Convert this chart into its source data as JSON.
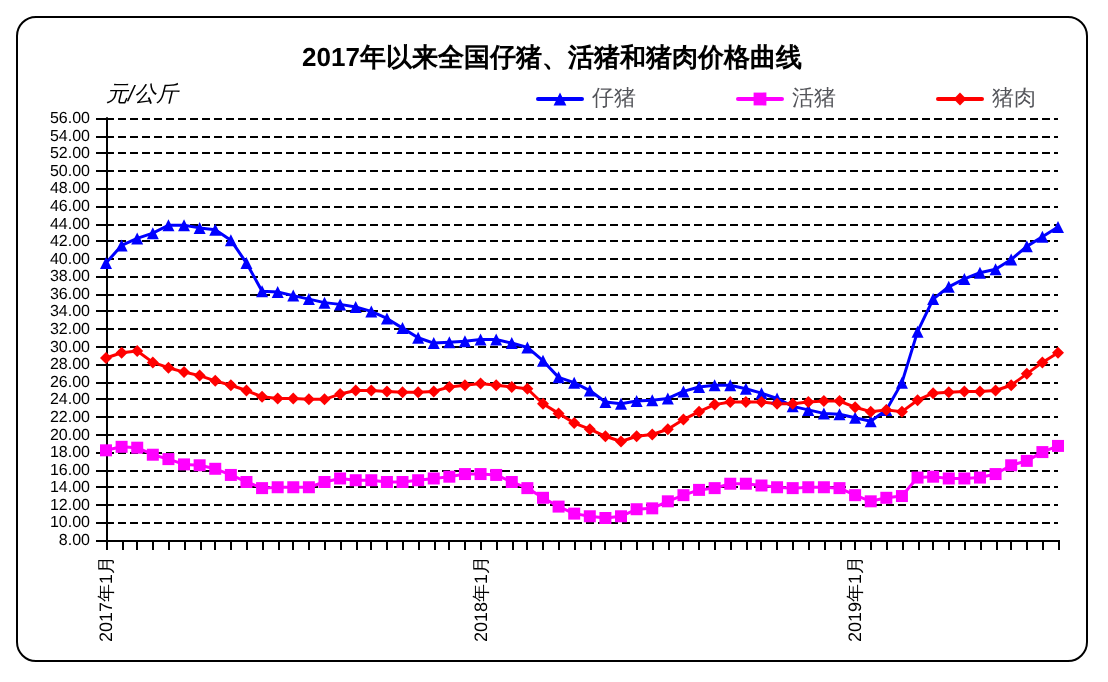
{
  "chart_data": {
    "type": "line",
    "title": "2017年以来全国仔猪、活猪和猪肉价格曲线",
    "ylabel": "元/公斤",
    "categories": [
      "2017年1月",
      null,
      null,
      null,
      null,
      null,
      null,
      null,
      null,
      null,
      null,
      null,
      null,
      null,
      null,
      null,
      null,
      null,
      null,
      null,
      null,
      null,
      null,
      null,
      "2018年1月",
      null,
      null,
      null,
      null,
      null,
      null,
      null,
      null,
      null,
      null,
      null,
      null,
      null,
      null,
      null,
      null,
      null,
      null,
      null,
      null,
      null,
      null,
      null,
      "2019年1月",
      null,
      null,
      null,
      null,
      null,
      null,
      null,
      null,
      null,
      null,
      null,
      null,
      null
    ],
    "series": [
      {
        "name": "仔猪",
        "color": "#0000ff",
        "marker": "triangle",
        "values": [
          39.5,
          41.5,
          42.3,
          42.9,
          43.8,
          43.8,
          43.5,
          43.3,
          42.1,
          39.5,
          36.3,
          36.2,
          35.8,
          35.4,
          35.0,
          34.8,
          34.5,
          34.0,
          33.2,
          32.1,
          31.0,
          30.4,
          30.5,
          30.6,
          30.8,
          30.8,
          30.4,
          29.9,
          28.4,
          26.5,
          25.9,
          25.0,
          23.7,
          23.5,
          23.8,
          23.9,
          24.1,
          24.9,
          25.4,
          25.6,
          25.6,
          25.2,
          24.7,
          24.1,
          23.2,
          22.8,
          22.4,
          22.3,
          21.9,
          21.5,
          22.8,
          25.9,
          31.7,
          35.4,
          36.8,
          37.7,
          38.4,
          38.8,
          39.9,
          41.4,
          42.5,
          43.6
        ]
      },
      {
        "name": "活猪",
        "color": "#ff00ff",
        "marker": "square",
        "values": [
          18.2,
          18.6,
          18.5,
          17.7,
          17.2,
          16.6,
          16.5,
          16.1,
          15.4,
          14.6,
          13.9,
          14.0,
          14.0,
          14.0,
          14.6,
          15.0,
          14.8,
          14.8,
          14.6,
          14.6,
          14.8,
          15.0,
          15.2,
          15.5,
          15.5,
          15.4,
          14.6,
          13.9,
          12.8,
          11.8,
          11.0,
          10.7,
          10.5,
          10.7,
          11.5,
          11.6,
          12.4,
          13.1,
          13.7,
          13.9,
          14.4,
          14.4,
          14.2,
          14.0,
          13.9,
          14.0,
          14.0,
          13.9,
          13.1,
          12.4,
          12.8,
          13.0,
          15.1,
          15.2,
          15.0,
          15.0,
          15.1,
          15.5,
          16.5,
          17.0,
          18.0,
          18.7
        ]
      },
      {
        "name": "猪肉",
        "color": "#ff0000",
        "marker": "diamond",
        "values": [
          28.7,
          29.3,
          29.5,
          28.2,
          27.6,
          27.1,
          26.7,
          26.1,
          25.6,
          25.0,
          24.3,
          24.1,
          24.1,
          24.0,
          24.0,
          24.6,
          25.0,
          25.0,
          24.9,
          24.8,
          24.8,
          24.9,
          25.4,
          25.6,
          25.8,
          25.6,
          25.4,
          25.2,
          23.5,
          22.4,
          21.3,
          20.6,
          19.8,
          19.2,
          19.8,
          20.0,
          20.6,
          21.7,
          22.6,
          23.4,
          23.7,
          23.7,
          23.7,
          23.5,
          23.5,
          23.7,
          23.8,
          23.8,
          23.1,
          22.6,
          22.8,
          22.6,
          23.9,
          24.7,
          24.8,
          24.9,
          24.9,
          25.0,
          25.6,
          26.9,
          28.2,
          29.3
        ]
      }
    ],
    "ylim": [
      8,
      56
    ],
    "yticks": [
      {
        "value": 8,
        "label": "8.00"
      },
      {
        "value": 10,
        "label": "10.00"
      },
      {
        "value": 12,
        "label": "12.00"
      },
      {
        "value": 14,
        "label": "14.00"
      },
      {
        "value": 16,
        "label": "16.00"
      },
      {
        "value": 18,
        "label": "18.00"
      },
      {
        "value": 20,
        "label": "20.00"
      },
      {
        "value": 22,
        "label": "22.00"
      },
      {
        "value": 24,
        "label": "24.00"
      },
      {
        "value": 26,
        "label": "26.00"
      },
      {
        "value": 28,
        "label": "28.00"
      },
      {
        "value": 30,
        "label": "30.00"
      },
      {
        "value": 32,
        "label": "32.00"
      },
      {
        "value": 34,
        "label": "34.00"
      },
      {
        "value": 36,
        "label": "36.00"
      },
      {
        "value": 38,
        "label": "38.00"
      },
      {
        "value": 40,
        "label": "40.00"
      },
      {
        "value": 42,
        "label": "42.00"
      },
      {
        "value": 44,
        "label": "44.00"
      },
      {
        "value": 46,
        "label": "46.00"
      },
      {
        "value": 48,
        "label": "48.00"
      },
      {
        "value": 50,
        "label": "50.00"
      },
      {
        "value": 52,
        "label": "52.00"
      },
      {
        "value": 54,
        "label": "54.00"
      },
      {
        "value": 56,
        "label": "56.00"
      }
    ],
    "grid": "y",
    "legend": "top right",
    "line_style": "solid"
  }
}
